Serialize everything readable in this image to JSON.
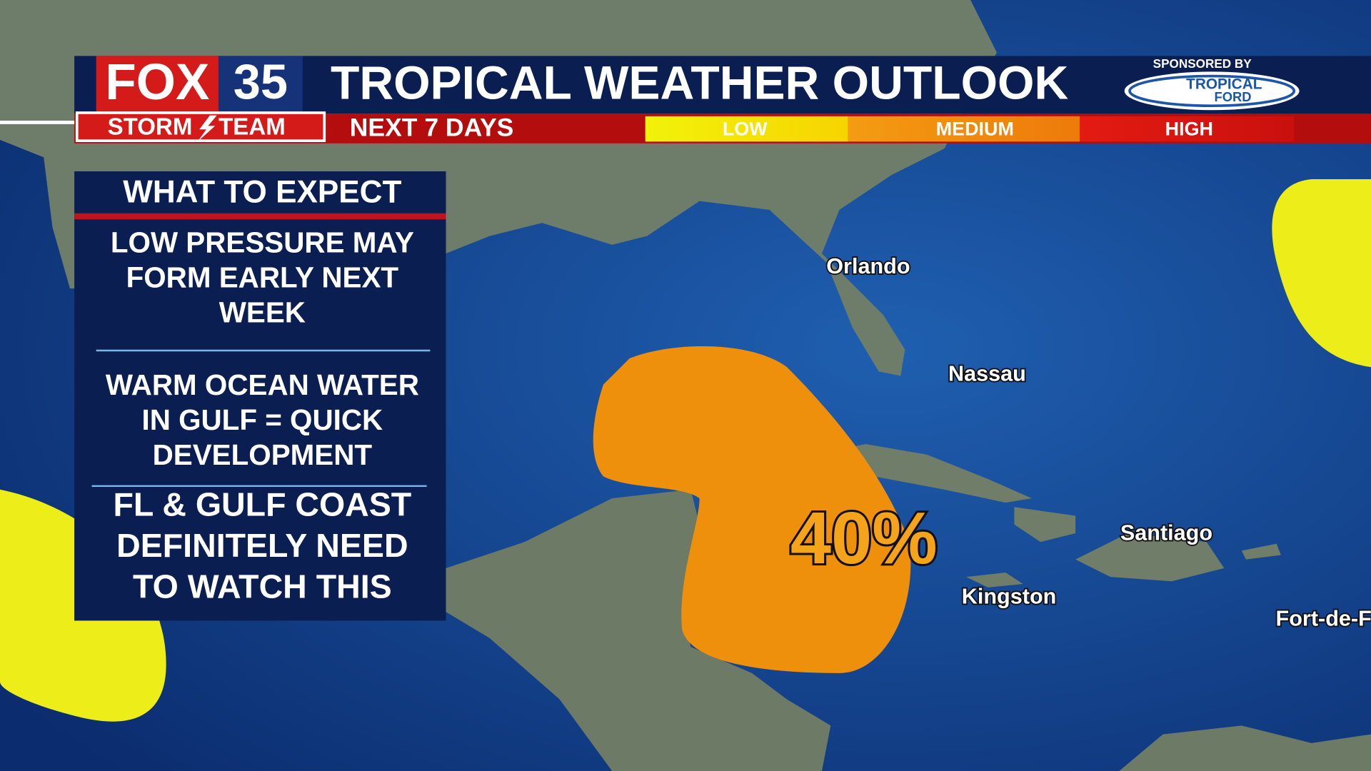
{
  "header": {
    "logo": {
      "brand": "FOX",
      "channel": "35",
      "team_left": "STORM",
      "team_right": "TEAM"
    },
    "title": "TROPICAL WEATHER OUTLOOK",
    "subtitle": "NEXT 7 DAYS",
    "legend": [
      "LOW",
      "MEDIUM",
      "HIGH"
    ],
    "sponsor_label": "SPONSORED BY",
    "sponsor_logo": [
      "TROPICAL",
      "FORD"
    ]
  },
  "panel": {
    "title": "WHAT TO EXPECT",
    "items": [
      {
        "lines": [
          "LOW PRESSURE MAY",
          "FORM EARLY NEXT",
          "WEEK"
        ]
      },
      {
        "lines": [
          "WARM OCEAN WATER",
          "IN GULF = QUICK",
          "DEVELOPMENT"
        ]
      },
      {
        "lines": [
          "FL & GULF COAST",
          "DEFINITELY NEED",
          "TO WATCH THIS"
        ]
      }
    ]
  },
  "map": {
    "cities": [
      "Orlando",
      "Nassau",
      "Santiago",
      "Kingston",
      "Fort-de-France"
    ],
    "area_label": "40%"
  }
}
